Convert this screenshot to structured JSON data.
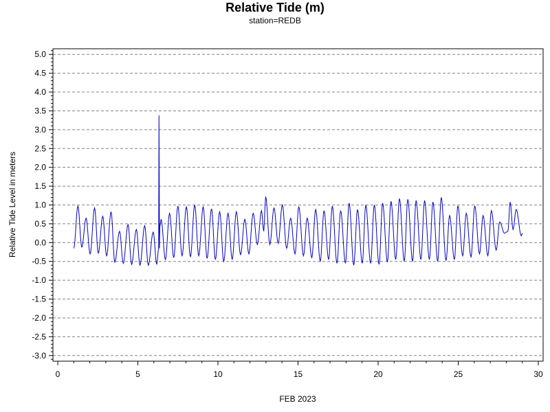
{
  "chart_data": {
    "type": "line",
    "title": "Relative Tide (m)",
    "subtitle": "station=REDB",
    "xlabel": "FEB 2023",
    "ylabel": "Relative Tide Level in meters",
    "xlim": [
      -0.3,
      30.3
    ],
    "ylim": [
      -3.15,
      5.15
    ],
    "xticks": [
      0,
      5,
      10,
      15,
      20,
      25,
      30
    ],
    "xtick_labels": [
      "0",
      "5",
      "10",
      "15",
      "20",
      "25",
      "30"
    ],
    "yticks": [
      5.0,
      4.5,
      4.0,
      3.5,
      3.0,
      2.5,
      2.0,
      1.5,
      1.0,
      0.5,
      0.0,
      -0.5,
      -1.0,
      -1.5,
      -2.0,
      -2.5,
      -3.0
    ],
    "ytick_labels": [
      "5.0",
      "4.5",
      "4.0",
      "3.5",
      "3.0",
      "2.5",
      "2.0",
      "1.5",
      "1.0",
      "0.5",
      "0.0",
      "-0.5",
      "-1.0",
      "-1.5",
      "-2.0",
      "-2.5",
      "-3.0"
    ],
    "grid": "horizontal dashed at labeled y ticks",
    "line_color": "#0000cc",
    "series": [
      {
        "x": [
          1.0,
          1.26,
          1.5,
          1.77,
          2.02,
          2.3,
          2.53,
          2.81,
          3.05,
          3.33,
          3.56,
          3.86,
          4.09,
          4.39,
          4.61,
          4.91,
          5.13,
          5.43,
          5.65,
          5.96,
          6.18,
          6.3,
          6.32,
          6.35,
          6.37,
          6.45,
          6.72,
          6.98,
          7.24,
          7.5,
          7.76,
          8.03,
          8.28,
          8.55,
          8.8,
          9.08,
          9.32,
          9.6,
          9.84,
          10.11,
          10.36,
          10.63,
          10.89,
          11.15,
          11.41,
          11.68,
          11.93,
          12.2,
          12.46,
          12.72,
          12.86,
          12.98,
          13.24,
          13.5,
          13.76,
          14.02,
          14.29,
          14.54,
          14.81,
          15.05,
          15.34,
          15.57,
          15.86,
          16.1,
          16.39,
          16.62,
          16.91,
          17.14,
          17.43,
          17.66,
          17.96,
          18.19,
          18.48,
          18.71,
          19.01,
          19.23,
          19.53,
          19.76,
          20.06,
          20.28,
          20.58,
          20.8,
          21.1,
          21.33,
          21.63,
          21.85,
          22.15,
          22.37,
          22.67,
          22.9,
          23.2,
          23.42,
          23.72,
          23.94,
          24.24,
          24.46,
          24.76,
          24.98,
          25.28,
          25.5,
          25.8,
          26.03,
          26.33,
          26.55,
          26.85,
          27.07,
          27.37,
          27.59,
          27.89,
          28.1,
          28.24,
          28.42,
          28.62,
          28.94,
          29.0
        ],
        "y": [
          -0.15,
          0.97,
          -0.12,
          0.65,
          -0.3,
          0.92,
          -0.28,
          0.7,
          -0.35,
          0.82,
          -0.52,
          0.3,
          -0.55,
          0.48,
          -0.58,
          0.35,
          -0.6,
          0.45,
          -0.6,
          0.28,
          -0.58,
          -0.15,
          3.38,
          -0.15,
          0.4,
          0.62,
          -0.45,
          0.78,
          -0.4,
          0.97,
          -0.35,
          0.95,
          -0.38,
          1.0,
          -0.35,
          0.95,
          -0.42,
          0.9,
          -0.45,
          0.82,
          -0.5,
          0.78,
          -0.45,
          0.82,
          -0.32,
          0.62,
          -0.3,
          0.78,
          -0.05,
          0.85,
          0.3,
          1.22,
          -0.05,
          0.92,
          -0.02,
          1.0,
          -0.15,
          0.65,
          -0.3,
          0.95,
          -0.35,
          0.65,
          -0.4,
          0.88,
          -0.5,
          0.85,
          -0.45,
          0.97,
          -0.55,
          0.85,
          -0.55,
          1.05,
          -0.6,
          0.88,
          -0.55,
          1.0,
          -0.55,
          1.0,
          -0.58,
          1.05,
          -0.52,
          1.1,
          -0.45,
          1.17,
          -0.5,
          1.15,
          -0.5,
          1.12,
          -0.45,
          1.12,
          -0.45,
          1.08,
          -0.5,
          1.2,
          -0.48,
          0.72,
          -0.45,
          0.98,
          -0.35,
          0.78,
          -0.38,
          0.98,
          -0.3,
          0.72,
          -0.35,
          0.85,
          -0.2,
          0.55,
          0.25,
          0.3,
          1.08,
          0.35,
          0.88,
          0.18,
          0.25
        ]
      }
    ]
  }
}
